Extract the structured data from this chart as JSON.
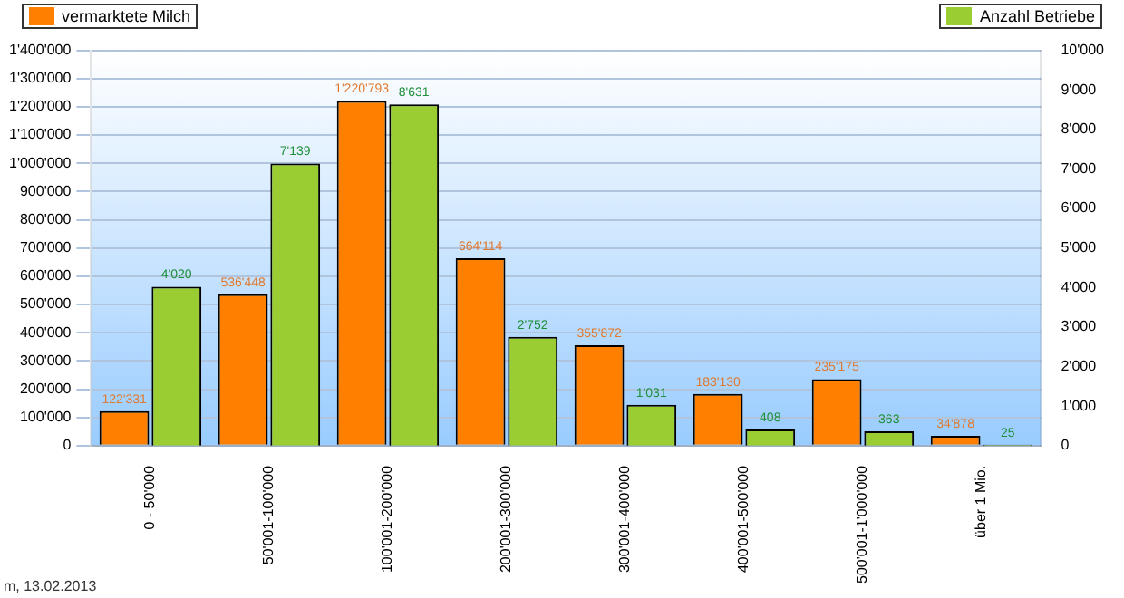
{
  "chart_data": {
    "type": "bar",
    "categories": [
      "0 - 50'000",
      "50'001-100'000",
      "100'001-200'000",
      "200'001-300'000",
      "300'001-400'000",
      "400'001-500'000",
      "500'001-1'000'000",
      "über 1 Mio."
    ],
    "series": [
      {
        "name": "vermarktete Milch",
        "color": "#ff8000",
        "values": [
          122331,
          536448,
          1220793,
          664114,
          355872,
          183130,
          235175,
          34878
        ],
        "value_labels": [
          "122'331",
          "536'448",
          "1'220'793",
          "664'114",
          "355'872",
          "183'130",
          "235'175",
          "34'878"
        ]
      },
      {
        "name": "Anzahl Betriebe",
        "color": "#9acd32",
        "axis": "y2",
        "values": [
          4020,
          7139,
          8631,
          2752,
          1031,
          408,
          363,
          25
        ],
        "value_labels": [
          "4'020",
          "7'139",
          "8'631",
          "2'752",
          "1'031",
          "408",
          "363",
          "25"
        ]
      }
    ],
    "ylim": [
      0,
      1400000
    ],
    "yticks": [
      {
        "value": 0,
        "label": "0"
      },
      {
        "value": 100000,
        "label": "100'000"
      },
      {
        "value": 200000,
        "label": "200'000"
      },
      {
        "value": 300000,
        "label": "300'000"
      },
      {
        "value": 400000,
        "label": "400'000"
      },
      {
        "value": 500000,
        "label": "500'000"
      },
      {
        "value": 600000,
        "label": "600'000"
      },
      {
        "value": 700000,
        "label": "700'000"
      },
      {
        "value": 800000,
        "label": "800'000"
      },
      {
        "value": 900000,
        "label": "900'000"
      },
      {
        "value": 1000000,
        "label": "1'000'000"
      },
      {
        "value": 1100000,
        "label": "1'100'000"
      },
      {
        "value": 1200000,
        "label": "1'200'000"
      },
      {
        "value": 1300000,
        "label": "1'300'000"
      },
      {
        "value": 1400000,
        "label": "1'400'000"
      }
    ],
    "y2lim": [
      0,
      10000
    ],
    "y2ticks": [
      {
        "value": 0,
        "label": "0"
      },
      {
        "value": 1000,
        "label": "1'000"
      },
      {
        "value": 2000,
        "label": "2'000"
      },
      {
        "value": 3000,
        "label": "3'000"
      },
      {
        "value": 4000,
        "label": "4'000"
      },
      {
        "value": 5000,
        "label": "5'000"
      },
      {
        "value": 6000,
        "label": "6'000"
      },
      {
        "value": 7000,
        "label": "7'000"
      },
      {
        "value": 8000,
        "label": "8'000"
      },
      {
        "value": 9000,
        "label": "9'000"
      },
      {
        "value": 10000,
        "label": "10'000"
      }
    ],
    "grid": "y",
    "legend": "top",
    "annotations": [
      "m, 13.02.2013"
    ]
  }
}
